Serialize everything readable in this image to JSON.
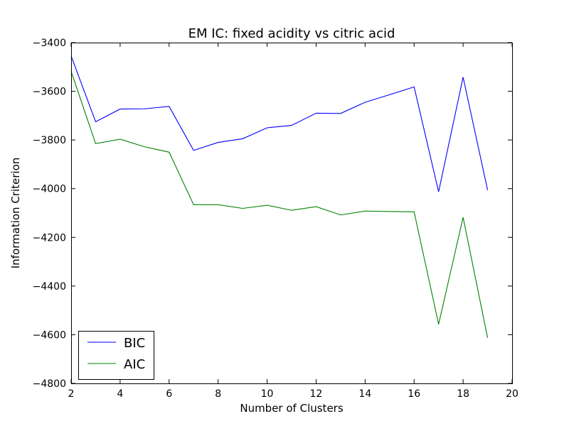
{
  "chart_data": {
    "type": "line",
    "title": "EM IC: fixed acidity vs citric acid",
    "xlabel": "Number of Clusters",
    "ylabel": "Information Criterion",
    "xlim": [
      2,
      20
    ],
    "ylim": [
      -4800,
      -3400
    ],
    "xticks": [
      2,
      4,
      6,
      8,
      10,
      12,
      14,
      16,
      18,
      20
    ],
    "yticks": [
      -3400,
      -3600,
      -3800,
      -4000,
      -4200,
      -4400,
      -4600,
      -4800
    ],
    "grid": false,
    "legend_position": "lower-left",
    "x": [
      2,
      3,
      4,
      5,
      6,
      7,
      8,
      9,
      10,
      11,
      12,
      13,
      14,
      15,
      16,
      17,
      18,
      19
    ],
    "series": [
      {
        "name": "BIC",
        "color": "#0000ff",
        "values": [
          -3455,
          -3725,
          -3673,
          -3672,
          -3662,
          -3843,
          -3810,
          -3795,
          -3750,
          -3740,
          -3690,
          -3691,
          -3645,
          -3614,
          -3582,
          -4013,
          -3542,
          -4006
        ]
      },
      {
        "name": "AIC",
        "color": "#008000",
        "values": [
          -3518,
          -3815,
          -3797,
          -3828,
          -3850,
          -4066,
          -4066,
          -4081,
          -4068,
          -4089,
          -4074,
          -4108,
          -4092,
          -4094,
          -4095,
          -4557,
          -4118,
          -4613
        ]
      }
    ]
  }
}
